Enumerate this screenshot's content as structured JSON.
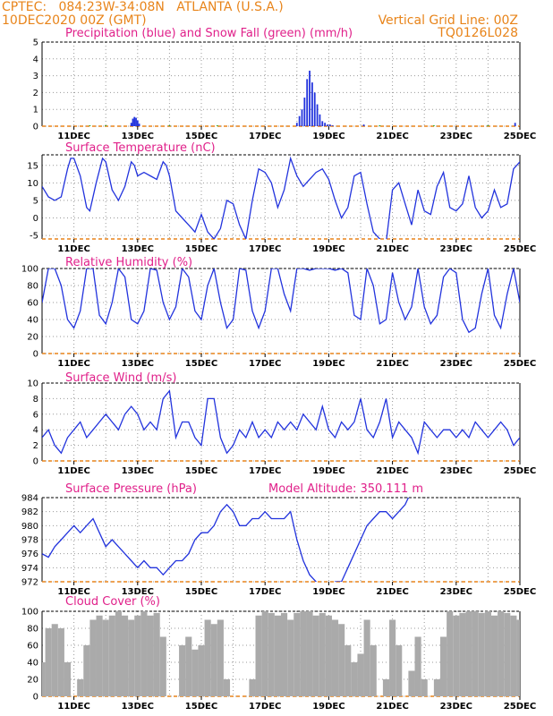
{
  "header": {
    "line1_left": "CPTEC:   084:23W-34:08N   ATLANTA (U.S.A.)",
    "line2_left": "10DEC2020 00Z (GMT)",
    "line2_right": "Vertical Grid Line: 00Z",
    "line3_right": "TQ0126L028"
  },
  "colors": {
    "header": "#e8841a",
    "title": "#e0208a",
    "line": "#2233dd",
    "snow": "#22aa22",
    "cloud": "#aaaaaa",
    "grid_x": "#e8841a"
  },
  "x_ticks": [
    "11DEC",
    "13DEC",
    "15DEC",
    "17DEC",
    "19DEC",
    "21DEC",
    "23DEC",
    "25DEC"
  ],
  "chart_data": [
    {
      "type": "bar",
      "title": "Precipitation (blue) and Snow Fall (green) (mm/h)",
      "ylim": [
        0,
        5
      ],
      "y_ticks": [
        "0",
        "1",
        "2",
        "3",
        "4",
        "5"
      ],
      "series": [
        {
          "name": "blue",
          "x": [
            12.8,
            12.85,
            12.9,
            12.95,
            13.0,
            13.05,
            18.0,
            18.08,
            18.16,
            18.24,
            18.32,
            18.4,
            18.48,
            18.56,
            18.64,
            18.72,
            18.8,
            18.88,
            18.96,
            19.04,
            19.12,
            20.1,
            24.85
          ],
          "values": [
            0.2,
            0.45,
            0.55,
            0.5,
            0.35,
            0.15,
            0.2,
            0.6,
            1.0,
            1.7,
            2.8,
            3.3,
            2.6,
            2.0,
            1.3,
            0.7,
            0.3,
            0.2,
            0.1,
            0.1,
            0.05,
            0.1,
            0.2
          ]
        },
        {
          "name": "green",
          "x": [
            11.5,
            12.0,
            14.0,
            15.5,
            20.6,
            22.3,
            24.0
          ],
          "values": [
            0.05,
            0.05,
            0.05,
            0.05,
            0.05,
            0.05,
            0.05
          ]
        }
      ]
    },
    {
      "type": "line",
      "title": "Surface Temperature (nC)",
      "ylim": [
        -6,
        18
      ],
      "y_ticks": [
        "-5",
        "0",
        "5",
        "10",
        "15"
      ],
      "x": [
        10.0,
        10.2,
        10.4,
        10.6,
        10.8,
        10.9,
        11.0,
        11.2,
        11.4,
        11.5,
        11.7,
        11.9,
        12.0,
        12.2,
        12.4,
        12.6,
        12.8,
        12.9,
        13.0,
        13.2,
        13.4,
        13.6,
        13.8,
        13.9,
        14.0,
        14.2,
        14.4,
        14.6,
        14.8,
        15.0,
        15.2,
        15.4,
        15.6,
        15.8,
        16.0,
        16.2,
        16.4,
        16.6,
        16.8,
        17.0,
        17.2,
        17.4,
        17.6,
        17.8,
        18.0,
        18.2,
        18.4,
        18.6,
        18.8,
        19.0,
        19.2,
        19.4,
        19.6,
        19.8,
        20.0,
        20.2,
        20.4,
        20.6,
        20.8,
        21.0,
        21.2,
        21.4,
        21.6,
        21.8,
        22.0,
        22.2,
        22.4,
        22.6,
        22.8,
        23.0,
        23.2,
        23.4,
        23.6,
        23.8,
        24.0,
        24.2,
        24.4,
        24.6,
        24.8,
        25.0
      ],
      "values": [
        9,
        6,
        5,
        6,
        14,
        17,
        17,
        12,
        3,
        2,
        10,
        17,
        16,
        8,
        5,
        9,
        16,
        15,
        12,
        13,
        12,
        11,
        16,
        15,
        12,
        2,
        0,
        -2,
        -4,
        1,
        -4,
        -6,
        -3,
        5,
        4,
        -2,
        -6,
        5,
        14,
        13,
        10,
        3,
        8,
        17,
        12,
        9,
        11,
        13,
        14,
        11,
        5,
        0,
        3,
        12,
        13,
        4,
        -4,
        -6,
        -7,
        8,
        10,
        4,
        -2,
        8,
        2,
        1,
        9,
        13,
        3,
        2,
        4,
        12,
        3,
        0,
        2,
        8,
        3,
        4,
        14,
        16
      ]
    },
    {
      "type": "line",
      "title": "Relative Humidity (%)",
      "ylim": [
        0,
        100
      ],
      "y_ticks": [
        "0",
        "20",
        "40",
        "60",
        "80",
        "100"
      ],
      "x": [
        10.0,
        10.2,
        10.4,
        10.6,
        10.8,
        11.0,
        11.2,
        11.4,
        11.6,
        11.8,
        12.0,
        12.2,
        12.4,
        12.6,
        12.8,
        13.0,
        13.2,
        13.4,
        13.6,
        13.8,
        14.0,
        14.2,
        14.4,
        14.6,
        14.8,
        15.0,
        15.2,
        15.4,
        15.6,
        15.8,
        16.0,
        16.2,
        16.4,
        16.6,
        16.8,
        17.0,
        17.2,
        17.4,
        17.6,
        17.8,
        18.0,
        18.2,
        18.4,
        18.6,
        18.8,
        19.0,
        19.2,
        19.4,
        19.6,
        19.8,
        20.0,
        20.2,
        20.4,
        20.6,
        20.8,
        21.0,
        21.2,
        21.4,
        21.6,
        21.8,
        22.0,
        22.2,
        22.4,
        22.6,
        22.8,
        23.0,
        23.2,
        23.4,
        23.6,
        23.8,
        24.0,
        24.2,
        24.4,
        24.6,
        24.8,
        25.0
      ],
      "values": [
        60,
        100,
        100,
        80,
        40,
        30,
        50,
        100,
        100,
        45,
        35,
        60,
        100,
        90,
        40,
        35,
        50,
        100,
        98,
        60,
        40,
        55,
        100,
        90,
        50,
        40,
        80,
        100,
        60,
        30,
        40,
        100,
        98,
        50,
        30,
        50,
        100,
        100,
        70,
        50,
        100,
        100,
        98,
        100,
        100,
        100,
        98,
        100,
        95,
        45,
        40,
        100,
        80,
        35,
        40,
        95,
        60,
        40,
        55,
        100,
        55,
        35,
        45,
        90,
        100,
        95,
        40,
        25,
        30,
        70,
        100,
        45,
        30,
        70,
        100,
        60
      ]
    },
    {
      "type": "line",
      "title": "Surface Wind (m/s)",
      "ylim": [
        0,
        10
      ],
      "y_ticks": [
        "0",
        "2",
        "4",
        "6",
        "8",
        "10"
      ],
      "x": [
        10.0,
        10.2,
        10.4,
        10.6,
        10.8,
        11.0,
        11.2,
        11.4,
        11.6,
        11.8,
        12.0,
        12.2,
        12.4,
        12.6,
        12.8,
        13.0,
        13.2,
        13.4,
        13.6,
        13.8,
        14.0,
        14.2,
        14.4,
        14.6,
        14.8,
        15.0,
        15.2,
        15.4,
        15.6,
        15.8,
        16.0,
        16.2,
        16.4,
        16.6,
        16.8,
        17.0,
        17.2,
        17.4,
        17.6,
        17.8,
        18.0,
        18.2,
        18.4,
        18.6,
        18.8,
        19.0,
        19.2,
        19.4,
        19.6,
        19.8,
        20.0,
        20.2,
        20.4,
        20.6,
        20.8,
        21.0,
        21.2,
        21.4,
        21.6,
        21.8,
        22.0,
        22.2,
        22.4,
        22.6,
        22.8,
        23.0,
        23.2,
        23.4,
        23.6,
        23.8,
        24.0,
        24.2,
        24.4,
        24.6,
        24.8,
        25.0
      ],
      "values": [
        3,
        4,
        2,
        1,
        3,
        4,
        5,
        3,
        4,
        5,
        6,
        5,
        4,
        6,
        7,
        6,
        4,
        5,
        4,
        8,
        9,
        3,
        5,
        5,
        3,
        2,
        8,
        8,
        3,
        1,
        2,
        4,
        3,
        5,
        3,
        4,
        3,
        5,
        4,
        5,
        4,
        6,
        5,
        4,
        7,
        4,
        3,
        5,
        4,
        5,
        8,
        4,
        3,
        5,
        8,
        3,
        5,
        4,
        3,
        1,
        5,
        4,
        3,
        4,
        4,
        3,
        4,
        3,
        5,
        4,
        3,
        4,
        5,
        4,
        2,
        3
      ]
    },
    {
      "type": "line",
      "title": "Surface Pressure (hPa)",
      "subtitle": "Model Altitude: 350.111 m",
      "ylim": [
        972,
        984
      ],
      "y_ticks": [
        "972",
        "974",
        "976",
        "978",
        "980",
        "982",
        "984"
      ],
      "x": [
        10.0,
        10.2,
        10.4,
        10.6,
        10.8,
        11.0,
        11.2,
        11.4,
        11.6,
        11.8,
        12.0,
        12.2,
        12.4,
        12.6,
        12.8,
        13.0,
        13.2,
        13.4,
        13.6,
        13.8,
        14.0,
        14.2,
        14.4,
        14.6,
        14.8,
        15.0,
        15.2,
        15.4,
        15.6,
        15.8,
        16.0,
        16.2,
        16.4,
        16.6,
        16.8,
        17.0,
        17.2,
        17.4,
        17.6,
        17.8,
        18.0,
        18.2,
        18.4,
        18.6,
        18.8,
        19.0,
        19.2,
        19.4,
        19.6,
        19.8,
        20.0,
        20.2,
        20.4,
        20.6,
        20.8,
        21.0,
        21.2,
        21.4,
        21.6
      ],
      "values": [
        976,
        975.5,
        977,
        978,
        979,
        980,
        979,
        980,
        981,
        979,
        977,
        978,
        977,
        976,
        975,
        974,
        975,
        974,
        974,
        973,
        974,
        975,
        975,
        976,
        978,
        979,
        979,
        980,
        982,
        983,
        982,
        980,
        980,
        981,
        981,
        982,
        981,
        981,
        981,
        982,
        978,
        975,
        973,
        972,
        970,
        971,
        972,
        972,
        974,
        976,
        978,
        980,
        981,
        982,
        982,
        981,
        982,
        983,
        985
      ]
    },
    {
      "type": "bar",
      "title": "Cloud Cover (%)",
      "ylim": [
        0,
        100
      ],
      "y_ticks": [
        "0",
        "20",
        "40",
        "60",
        "80",
        "100"
      ],
      "x": [
        10.0,
        10.2,
        10.4,
        10.6,
        10.8,
        11.0,
        11.2,
        11.4,
        11.6,
        11.8,
        12.0,
        12.2,
        12.4,
        12.6,
        12.8,
        13.0,
        13.2,
        13.4,
        13.6,
        13.8,
        14.0,
        14.2,
        14.4,
        14.6,
        14.8,
        15.0,
        15.2,
        15.4,
        15.6,
        15.8,
        16.0,
        16.2,
        16.4,
        16.6,
        16.8,
        17.0,
        17.2,
        17.4,
        17.6,
        17.8,
        18.0,
        18.2,
        18.4,
        18.6,
        18.8,
        19.0,
        19.2,
        19.4,
        19.6,
        19.8,
        20.0,
        20.2,
        20.4,
        20.6,
        20.8,
        21.0,
        21.2,
        21.4,
        21.6,
        21.8,
        22.0,
        22.2,
        22.4,
        22.6,
        22.8,
        23.0,
        23.2,
        23.4,
        23.6,
        23.8,
        24.0,
        24.2,
        24.4,
        24.6,
        24.8,
        25.0
      ],
      "values": [
        40,
        80,
        85,
        80,
        40,
        0,
        20,
        60,
        90,
        95,
        90,
        95,
        100,
        95,
        90,
        95,
        100,
        95,
        98,
        70,
        0,
        0,
        60,
        70,
        55,
        60,
        90,
        85,
        90,
        20,
        0,
        0,
        0,
        20,
        95,
        100,
        98,
        95,
        98,
        90,
        98,
        100,
        100,
        95,
        98,
        95,
        90,
        85,
        60,
        40,
        50,
        90,
        60,
        0,
        20,
        90,
        60,
        0,
        30,
        70,
        20,
        0,
        20,
        70,
        100,
        95,
        98,
        100,
        100,
        98,
        100,
        95,
        100,
        98,
        95,
        90
      ]
    }
  ]
}
